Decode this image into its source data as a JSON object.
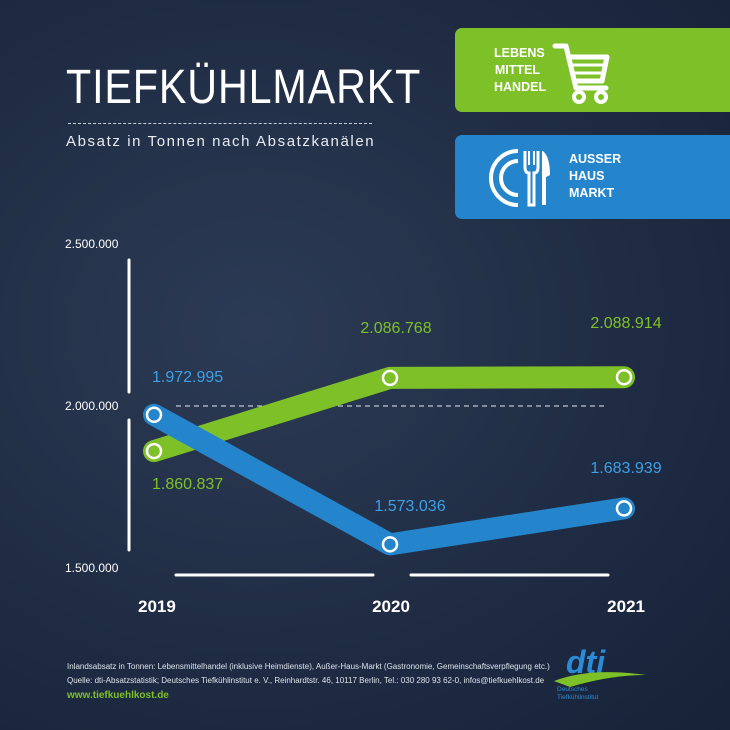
{
  "header": {
    "title": "TIEFKÜHLMARKT",
    "subtitle": "Absatz in Tonnen nach Absatzkanälen"
  },
  "legend": {
    "lebensmittelhandel": {
      "label": "LEBENS\nMITTEL\nHANDEL",
      "icon": "shopping-cart-icon",
      "color": "#7ec028"
    },
    "ausser_haus_markt": {
      "label": "AUSSER\nHAUS\nMARKT",
      "icon": "plate-cutlery-icon",
      "color": "#2585cc"
    }
  },
  "chart_data": {
    "type": "line",
    "x": [
      "2019",
      "2020",
      "2021"
    ],
    "ylim": [
      1500000,
      2500000
    ],
    "yticks": [
      1500000,
      2000000,
      2500000
    ],
    "ytick_labels": [
      "1.500.000",
      "2.000.000",
      "2.500.000"
    ],
    "reference_line": 2000000,
    "series": [
      {
        "name": "LEBENS MITTEL HANDEL",
        "color": "#7ec028",
        "values": [
          1860837,
          2086768,
          2088914
        ],
        "labels": [
          "1.860.837",
          "2.086.768",
          "2.088.914"
        ]
      },
      {
        "name": "AUSSER HAUS MARKT",
        "color": "#2585cc",
        "label_color": "#3ba0e6",
        "values": [
          1972995,
          1573036,
          1683939
        ],
        "labels": [
          "1.972.995",
          "1.573.036",
          "1.683.939"
        ]
      }
    ]
  },
  "footer": {
    "line1": "Inlandsabsatz in Tonnen: Lebensmittelhandel (inklusive Heimdienste), Außer-Haus-Markt (Gastronomie, Gemeinschaftsverpflegung etc.)",
    "line2": "Quelle: dti-Absatzstatistik; Deutsches Tiefkühlinstitut e. V., Reinhardtstr. 46, 10117 Berlin, Tel.: 030 280 93 62-0, infos@tiefkuehlkost.de",
    "url": "www.tiefkuehlkost.de",
    "logo_text": "dti",
    "logo_caption": "Deutsches\nTiefkühlinstitut"
  }
}
